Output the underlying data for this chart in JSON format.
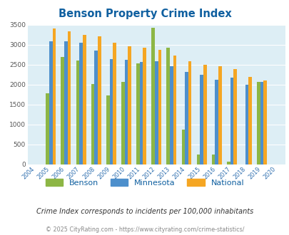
{
  "title": "Benson Property Crime Index",
  "years": [
    2004,
    2005,
    2006,
    2007,
    2008,
    2009,
    2010,
    2011,
    2012,
    2013,
    2014,
    2015,
    2016,
    2017,
    2018,
    2019,
    2020
  ],
  "benson": [
    0,
    1780,
    2700,
    2600,
    2020,
    1730,
    2075,
    2540,
    3420,
    2920,
    870,
    250,
    250,
    75,
    0,
    2060,
    0
  ],
  "minnesota": [
    0,
    3080,
    3080,
    3040,
    2850,
    2630,
    2620,
    2560,
    2580,
    2460,
    2310,
    2250,
    2120,
    2170,
    2000,
    2060,
    0
  ],
  "national": [
    0,
    3410,
    3330,
    3250,
    3210,
    3040,
    2960,
    2920,
    2870,
    2720,
    2590,
    2490,
    2460,
    2380,
    2200,
    2100,
    0
  ],
  "benson_color": "#8db645",
  "minnesota_color": "#4d8fcc",
  "national_color": "#f5a623",
  "bg_color": "#ddeef5",
  "ylim": [
    0,
    3500
  ],
  "yticks": [
    0,
    500,
    1000,
    1500,
    2000,
    2500,
    3000,
    3500
  ],
  "grid_color": "#ffffff",
  "title_color": "#1060a0",
  "subtitle": "Crime Index corresponds to incidents per 100,000 inhabitants",
  "footer": "© 2025 CityRating.com - https://www.cityrating.com/crime-statistics/",
  "legend_labels": [
    "Benson",
    "Minnesota",
    "National"
  ]
}
